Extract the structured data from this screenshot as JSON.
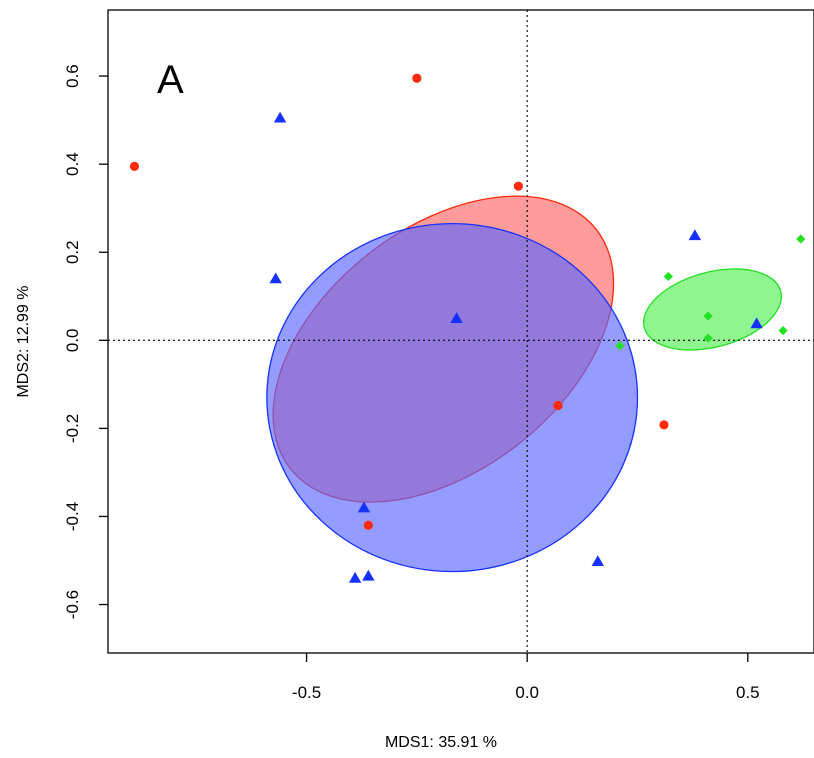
{
  "chart_data": {
    "type": "scatter",
    "title": "",
    "panel_label": "A",
    "xlabel": "MDS1: 35.91 %",
    "ylabel": "MDS2: 12.99 %",
    "xlim": [
      -0.95,
      0.65
    ],
    "ylim": [
      -0.71,
      0.75
    ],
    "x_ticks": [
      -0.5,
      0.0,
      0.5
    ],
    "x_tick_labels": [
      "-0.5",
      "0.0",
      "0.5"
    ],
    "y_ticks": [
      -0.6,
      -0.4,
      -0.2,
      0.0,
      0.2,
      0.4,
      0.6
    ],
    "y_tick_labels": [
      "-0.6",
      "-0.4",
      "-0.2",
      "0.0",
      "0.2",
      "0.4",
      "0.6"
    ],
    "grid": false,
    "reference_lines": [
      {
        "orientation": "vertical",
        "value": 0,
        "style": "dotted"
      },
      {
        "orientation": "horizontal",
        "value": 0,
        "style": "dotted"
      }
    ],
    "series": [
      {
        "marker": "circle",
        "color": "#ff2a0a",
        "fill_color": "#ff6666",
        "fill_opacity": 0.65,
        "x": [
          -0.25,
          -0.89,
          -0.02,
          0.07,
          0.31,
          -0.36
        ],
        "y": [
          0.595,
          0.395,
          0.35,
          -0.148,
          -0.192,
          -0.42
        ],
        "ellipse": {
          "cx": -0.19,
          "cy": -0.02,
          "rx": 0.44,
          "ry": 0.275,
          "angle_deg": -38
        }
      },
      {
        "marker": "triangle",
        "color": "#1530ff",
        "fill_color": "#5a67ff",
        "fill_opacity": 0.65,
        "x": [
          -0.56,
          0.38,
          -0.57,
          -0.16,
          0.52,
          -0.37,
          -0.39,
          -0.36,
          0.16
        ],
        "y": [
          0.505,
          0.238,
          0.14,
          0.05,
          0.038,
          -0.38,
          -0.54,
          -0.535,
          -0.502
        ],
        "ellipse": {
          "cx": -0.17,
          "cy": -0.13,
          "rx": 0.42,
          "ry": 0.395,
          "angle_deg": 0
        }
      },
      {
        "marker": "diamond",
        "color": "#22e022",
        "fill_color": "#44ee44",
        "fill_opacity": 0.6,
        "x": [
          0.62,
          0.32,
          0.41,
          0.58,
          0.41,
          0.21
        ],
        "y": [
          0.23,
          0.145,
          0.055,
          0.022,
          0.005,
          -0.012
        ],
        "ellipse": {
          "cx": 0.42,
          "cy": 0.07,
          "rx": 0.16,
          "ry": 0.085,
          "angle_deg": -15
        }
      }
    ]
  }
}
